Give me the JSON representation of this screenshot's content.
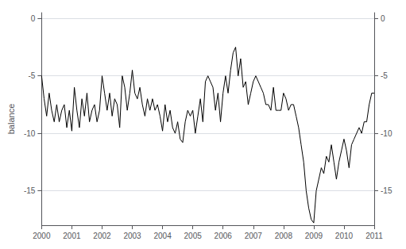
{
  "chart_data": {
    "type": "line",
    "ylabel": "balance",
    "color": "#000000",
    "xlim": [
      2000.0,
      2011.0
    ],
    "ylim": [
      -18.0,
      0.5
    ],
    "xticks": [
      2000,
      2001,
      2002,
      2003,
      2004,
      2005,
      2006,
      2007,
      2008,
      2009,
      2010,
      2011
    ],
    "yticks": [
      0,
      -5,
      -10,
      -15
    ],
    "y2lim": [
      -18.0,
      0.5
    ],
    "y2ticks": [
      0,
      -5,
      -10,
      -15
    ],
    "grid": true,
    "x": [
      2000.0,
      2000.083,
      2000.167,
      2000.25,
      2000.333,
      2000.417,
      2000.5,
      2000.583,
      2000.667,
      2000.75,
      2000.833,
      2000.917,
      2001.0,
      2001.083,
      2001.167,
      2001.25,
      2001.333,
      2001.417,
      2001.5,
      2001.583,
      2001.667,
      2001.75,
      2001.833,
      2001.917,
      2002.0,
      2002.083,
      2002.167,
      2002.25,
      2002.333,
      2002.417,
      2002.5,
      2002.583,
      2002.667,
      2002.75,
      2002.833,
      2002.917,
      2003.0,
      2003.083,
      2003.167,
      2003.25,
      2003.333,
      2003.417,
      2003.5,
      2003.583,
      2003.667,
      2003.75,
      2003.833,
      2003.917,
      2004.0,
      2004.083,
      2004.167,
      2004.25,
      2004.333,
      2004.417,
      2004.5,
      2004.583,
      2004.667,
      2004.75,
      2004.833,
      2004.917,
      2005.0,
      2005.083,
      2005.167,
      2005.25,
      2005.333,
      2005.417,
      2005.5,
      2005.583,
      2005.667,
      2005.75,
      2005.833,
      2005.917,
      2006.0,
      2006.083,
      2006.167,
      2006.25,
      2006.333,
      2006.417,
      2006.5,
      2006.583,
      2006.667,
      2006.75,
      2006.833,
      2006.917,
      2007.0,
      2007.083,
      2007.167,
      2007.25,
      2007.333,
      2007.417,
      2007.5,
      2007.583,
      2007.667,
      2007.75,
      2007.833,
      2007.917,
      2008.0,
      2008.083,
      2008.167,
      2008.25,
      2008.333,
      2008.417,
      2008.5,
      2008.583,
      2008.667,
      2008.75,
      2008.833,
      2008.917,
      2009.0,
      2009.083,
      2009.167,
      2009.25,
      2009.333,
      2009.417,
      2009.5,
      2009.583,
      2009.667,
      2009.75,
      2009.833,
      2009.917,
      2010.0,
      2010.083,
      2010.167,
      2010.25,
      2010.333,
      2010.417,
      2010.5,
      2010.583,
      2010.667,
      2010.75,
      2010.833,
      2010.917,
      2011.0
    ],
    "values": [
      -5.0,
      -7.0,
      -8.5,
      -6.5,
      -8.0,
      -9.0,
      -7.5,
      -9.0,
      -8.0,
      -7.5,
      -9.5,
      -8.0,
      -9.8,
      -6.0,
      -8.0,
      -9.5,
      -7.0,
      -8.5,
      -6.5,
      -9.0,
      -8.0,
      -7.5,
      -9.0,
      -8.0,
      -5.0,
      -6.5,
      -8.0,
      -6.5,
      -8.5,
      -7.0,
      -7.5,
      -9.5,
      -5.0,
      -6.0,
      -8.0,
      -6.5,
      -4.5,
      -6.5,
      -7.0,
      -6.0,
      -7.5,
      -8.5,
      -7.0,
      -8.0,
      -7.0,
      -8.0,
      -7.5,
      -8.5,
      -9.8,
      -7.5,
      -9.0,
      -8.0,
      -9.5,
      -10.0,
      -9.0,
      -10.5,
      -10.8,
      -9.0,
      -8.0,
      -8.5,
      -8.0,
      -10.0,
      -8.5,
      -7.0,
      -9.0,
      -5.5,
      -5.0,
      -5.5,
      -6.0,
      -8.0,
      -6.5,
      -9.0,
      -6.5,
      -5.0,
      -6.5,
      -4.5,
      -3.0,
      -2.5,
      -5.0,
      -3.5,
      -6.0,
      -5.5,
      -7.5,
      -6.5,
      -5.5,
      -5.0,
      -5.5,
      -6.0,
      -6.5,
      -7.5,
      -7.5,
      -8.0,
      -6.0,
      -8.0,
      -8.0,
      -8.0,
      -6.5,
      -7.0,
      -8.0,
      -7.5,
      -7.5,
      -8.5,
      -9.5,
      -11.0,
      -12.5,
      -15.0,
      -16.5,
      -17.5,
      -17.8,
      -15.0,
      -14.0,
      -13.0,
      -13.5,
      -12.0,
      -12.5,
      -11.0,
      -12.5,
      -14.0,
      -12.5,
      -11.5,
      -10.5,
      -11.5,
      -13.0,
      -11.0,
      -10.5,
      -10.0,
      -9.5,
      -10.0,
      -9.0,
      -9.0,
      -7.5,
      -6.5,
      -6.5
    ]
  }
}
